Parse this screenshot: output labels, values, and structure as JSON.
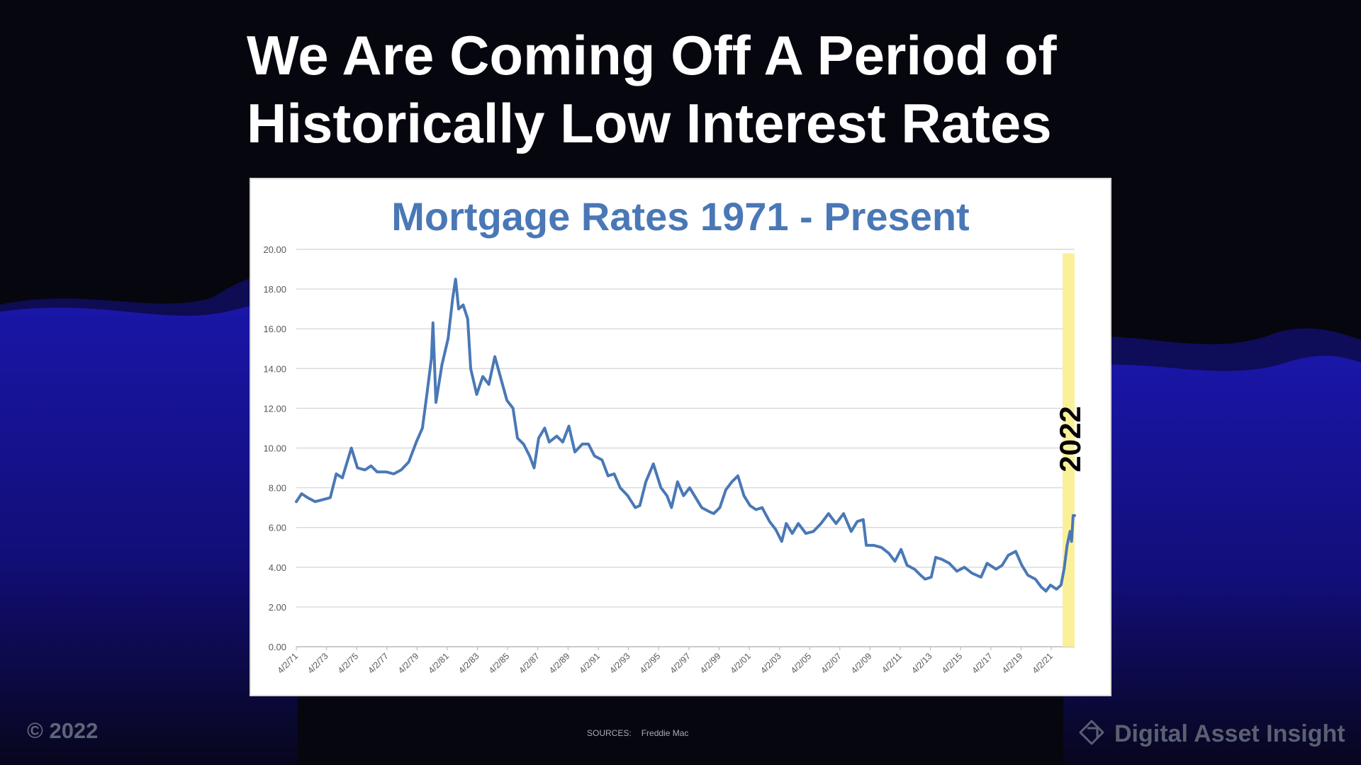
{
  "slide": {
    "title_line1": "We Are Coming Off A Period of",
    "title_line2": "Historically Low Interest Rates",
    "copyright": "© 2022",
    "sources_label": "SOURCES:",
    "sources_value": "Freddie Mac",
    "brand": "Digital Asset Insight",
    "brand_icon": "diamond-tag-icon"
  },
  "colors": {
    "background": "#06060e",
    "wave": "#1a16a8",
    "line": "#4a78b6",
    "highlight": "#fbf09a",
    "grid": "#d9d9d9"
  },
  "chart_data": {
    "type": "line",
    "title": "Mortgage Rates 1971 - Present",
    "xlabel": "",
    "ylabel": "",
    "ylim": [
      0,
      20
    ],
    "xlim": [
      1971.25,
      2022.8
    ],
    "y_ticks": [
      "0.00",
      "2.00",
      "4.00",
      "6.00",
      "8.00",
      "10.00",
      "12.00",
      "14.00",
      "16.00",
      "18.00",
      "20.00"
    ],
    "x_ticks": [
      {
        "year": 1971.25,
        "label": "4/2/71"
      },
      {
        "year": 1973.25,
        "label": "4/2/73"
      },
      {
        "year": 1975.25,
        "label": "4/2/75"
      },
      {
        "year": 1977.25,
        "label": "4/2/77"
      },
      {
        "year": 1979.25,
        "label": "4/2/79"
      },
      {
        "year": 1981.25,
        "label": "4/2/81"
      },
      {
        "year": 1983.25,
        "label": "4/2/83"
      },
      {
        "year": 1985.25,
        "label": "4/2/85"
      },
      {
        "year": 1987.25,
        "label": "4/2/87"
      },
      {
        "year": 1989.25,
        "label": "4/2/89"
      },
      {
        "year": 1991.25,
        "label": "4/2/91"
      },
      {
        "year": 1993.25,
        "label": "4/2/93"
      },
      {
        "year": 1995.25,
        "label": "4/2/95"
      },
      {
        "year": 1997.25,
        "label": "4/2/97"
      },
      {
        "year": 1999.25,
        "label": "4/2/99"
      },
      {
        "year": 2001.25,
        "label": "4/2/01"
      },
      {
        "year": 2003.25,
        "label": "4/2/03"
      },
      {
        "year": 2005.25,
        "label": "4/2/05"
      },
      {
        "year": 2007.25,
        "label": "4/2/07"
      },
      {
        "year": 2009.25,
        "label": "4/2/09"
      },
      {
        "year": 2011.25,
        "label": "4/2/11"
      },
      {
        "year": 2013.25,
        "label": "4/2/13"
      },
      {
        "year": 2015.25,
        "label": "4/2/15"
      },
      {
        "year": 2017.25,
        "label": "4/2/17"
      },
      {
        "year": 2019.25,
        "label": "4/2/19"
      },
      {
        "year": 2021.25,
        "label": "4/2/21"
      }
    ],
    "series": [
      {
        "points": [
          [
            1971.25,
            7.3
          ],
          [
            1971.6,
            7.7
          ],
          [
            1972.0,
            7.5
          ],
          [
            1972.5,
            7.3
          ],
          [
            1973.0,
            7.4
          ],
          [
            1973.5,
            7.5
          ],
          [
            1973.9,
            8.7
          ],
          [
            1974.3,
            8.5
          ],
          [
            1974.9,
            10.0
          ],
          [
            1975.3,
            9.0
          ],
          [
            1975.8,
            8.9
          ],
          [
            1976.2,
            9.1
          ],
          [
            1976.6,
            8.8
          ],
          [
            1977.2,
            8.8
          ],
          [
            1977.7,
            8.7
          ],
          [
            1978.2,
            8.9
          ],
          [
            1978.7,
            9.3
          ],
          [
            1979.2,
            10.3
          ],
          [
            1979.6,
            11.0
          ],
          [
            1979.9,
            12.7
          ],
          [
            1980.2,
            14.5
          ],
          [
            1980.3,
            16.3
          ],
          [
            1980.5,
            12.3
          ],
          [
            1980.9,
            14.2
          ],
          [
            1981.3,
            15.5
          ],
          [
            1981.6,
            17.5
          ],
          [
            1981.8,
            18.5
          ],
          [
            1982.0,
            17.0
          ],
          [
            1982.3,
            17.2
          ],
          [
            1982.6,
            16.5
          ],
          [
            1982.8,
            14.0
          ],
          [
            1983.2,
            12.7
          ],
          [
            1983.6,
            13.6
          ],
          [
            1984.0,
            13.2
          ],
          [
            1984.4,
            14.6
          ],
          [
            1984.8,
            13.5
          ],
          [
            1985.2,
            12.4
          ],
          [
            1985.6,
            12.0
          ],
          [
            1985.9,
            10.5
          ],
          [
            1986.3,
            10.2
          ],
          [
            1986.7,
            9.6
          ],
          [
            1987.0,
            9.0
          ],
          [
            1987.3,
            10.5
          ],
          [
            1987.7,
            11.0
          ],
          [
            1988.0,
            10.3
          ],
          [
            1988.5,
            10.6
          ],
          [
            1988.9,
            10.3
          ],
          [
            1989.3,
            11.1
          ],
          [
            1989.7,
            9.8
          ],
          [
            1990.2,
            10.2
          ],
          [
            1990.6,
            10.2
          ],
          [
            1991.0,
            9.6
          ],
          [
            1991.5,
            9.4
          ],
          [
            1991.9,
            8.6
          ],
          [
            1992.3,
            8.7
          ],
          [
            1992.7,
            8.0
          ],
          [
            1993.2,
            7.6
          ],
          [
            1993.7,
            7.0
          ],
          [
            1994.0,
            7.1
          ],
          [
            1994.4,
            8.3
          ],
          [
            1994.9,
            9.2
          ],
          [
            1995.4,
            8.0
          ],
          [
            1995.8,
            7.6
          ],
          [
            1996.1,
            7.0
          ],
          [
            1996.5,
            8.3
          ],
          [
            1996.9,
            7.6
          ],
          [
            1997.3,
            8.0
          ],
          [
            1997.7,
            7.5
          ],
          [
            1998.1,
            7.0
          ],
          [
            1998.6,
            6.8
          ],
          [
            1998.9,
            6.7
          ],
          [
            1999.3,
            7.0
          ],
          [
            1999.7,
            7.9
          ],
          [
            2000.1,
            8.3
          ],
          [
            2000.5,
            8.6
          ],
          [
            2000.9,
            7.6
          ],
          [
            2001.3,
            7.1
          ],
          [
            2001.7,
            6.9
          ],
          [
            2002.1,
            7.0
          ],
          [
            2002.6,
            6.3
          ],
          [
            2003.0,
            5.9
          ],
          [
            2003.4,
            5.3
          ],
          [
            2003.7,
            6.2
          ],
          [
            2004.1,
            5.7
          ],
          [
            2004.5,
            6.2
          ],
          [
            2005.0,
            5.7
          ],
          [
            2005.5,
            5.8
          ],
          [
            2006.0,
            6.2
          ],
          [
            2006.5,
            6.7
          ],
          [
            2007.0,
            6.2
          ],
          [
            2007.5,
            6.7
          ],
          [
            2008.0,
            5.8
          ],
          [
            2008.4,
            6.3
          ],
          [
            2008.8,
            6.4
          ],
          [
            2009.0,
            5.1
          ],
          [
            2009.5,
            5.1
          ],
          [
            2010.0,
            5.0
          ],
          [
            2010.5,
            4.7
          ],
          [
            2010.9,
            4.3
          ],
          [
            2011.3,
            4.9
          ],
          [
            2011.7,
            4.1
          ],
          [
            2012.2,
            3.9
          ],
          [
            2012.6,
            3.6
          ],
          [
            2012.9,
            3.4
          ],
          [
            2013.3,
            3.5
          ],
          [
            2013.6,
            4.5
          ],
          [
            2014.0,
            4.4
          ],
          [
            2014.5,
            4.2
          ],
          [
            2015.0,
            3.8
          ],
          [
            2015.5,
            4.0
          ],
          [
            2016.0,
            3.7
          ],
          [
            2016.6,
            3.5
          ],
          [
            2017.0,
            4.2
          ],
          [
            2017.6,
            3.9
          ],
          [
            2018.0,
            4.1
          ],
          [
            2018.4,
            4.6
          ],
          [
            2018.9,
            4.8
          ],
          [
            2019.3,
            4.1
          ],
          [
            2019.7,
            3.6
          ],
          [
            2020.2,
            3.4
          ],
          [
            2020.6,
            3.0
          ],
          [
            2020.9,
            2.8
          ],
          [
            2021.2,
            3.1
          ],
          [
            2021.6,
            2.9
          ],
          [
            2021.9,
            3.1
          ],
          [
            2022.1,
            3.9
          ],
          [
            2022.3,
            5.1
          ],
          [
            2022.5,
            5.8
          ],
          [
            2022.6,
            5.3
          ],
          [
            2022.7,
            6.6
          ],
          [
            2022.8,
            6.6
          ]
        ]
      }
    ],
    "highlight": {
      "x_start": 2022.0,
      "x_end": 2022.8,
      "y_top": 19.8,
      "label": "2022"
    }
  }
}
